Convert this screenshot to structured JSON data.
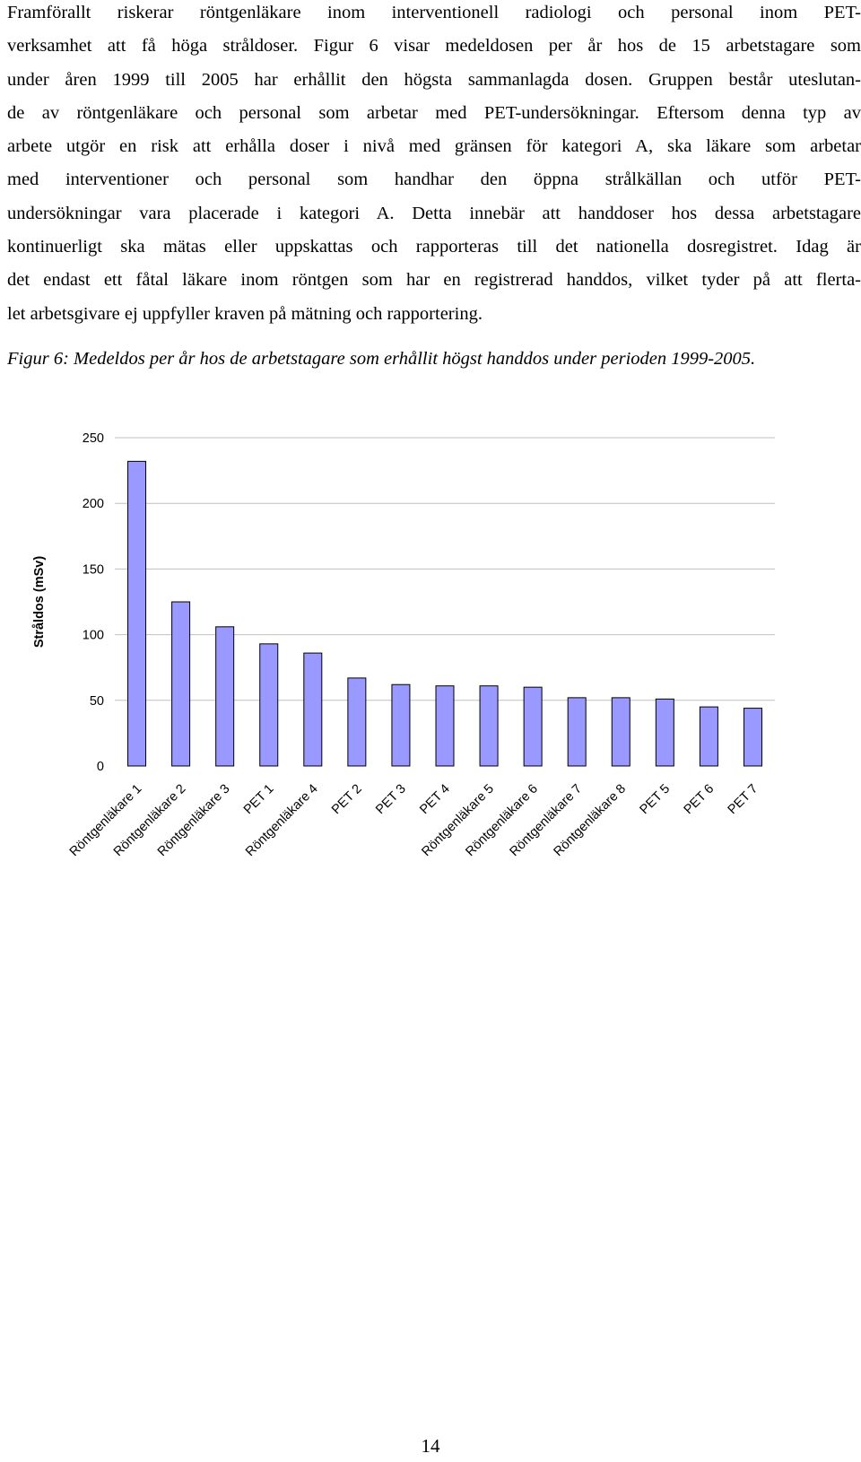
{
  "paragraph_lines": [
    "Framförallt riskerar röntgenläkare inom interventionell radiologi och personal inom PET-",
    "verksamhet att få höga stråldoser. Figur 6 visar medeldosen per år hos de 15 arbetstagare som",
    "under åren 1999 till 2005 har erhållit den högsta sammanlagda dosen. Gruppen består uteslutan-",
    "de av röntgenläkare och personal som arbetar med PET-undersökningar. Eftersom denna typ av",
    "arbete utgör en risk att erhålla doser i nivå med gränsen för kategori A, ska läkare som arbetar",
    "med interventioner och personal som handhar den öppna strålkällan och utför PET-",
    "undersökningar vara placerade i kategori A. Detta innebär att handdoser hos dessa arbetstagare",
    "kontinuerligt ska mätas eller uppskattas och rapporteras till det nationella dosregistret. Idag är",
    "det endast ett fåtal läkare inom röntgen som har en registrerad handdos, vilket tyder på att flerta-",
    "let arbetsgivare ej uppfyller kraven på mätning och rapportering."
  ],
  "caption": "Figur 6: Medeldos per år hos de arbetstagare som erhållit högst handdos under perioden 1999-2005.",
  "page_number": "14",
  "chart_data": {
    "type": "bar",
    "categories": [
      "Röntgenläkare 1",
      "Röntgenläkare 2",
      "Röntgenläkare 3",
      "PET 1",
      "Röntgenläkare 4",
      "PET 2",
      "PET 3",
      "PET 4",
      "Röntgenläkare 5",
      "Röntgenläkare 6",
      "Röntgenläkare 7",
      "Röntgenläkare 8",
      "PET 5",
      "PET 6",
      "PET 7"
    ],
    "values": [
      232,
      125,
      106,
      93,
      86,
      67,
      62,
      61,
      61,
      60,
      52,
      52,
      51,
      45,
      44
    ],
    "ylabel": "Stråldos (mSv)",
    "ylim": [
      0,
      250
    ],
    "yticks": [
      0,
      50,
      100,
      150,
      200,
      250
    ],
    "grid": true,
    "bar_color": "#9999ff",
    "bar_edge_color": "#000000",
    "grid_color": "#c0c0c0"
  }
}
